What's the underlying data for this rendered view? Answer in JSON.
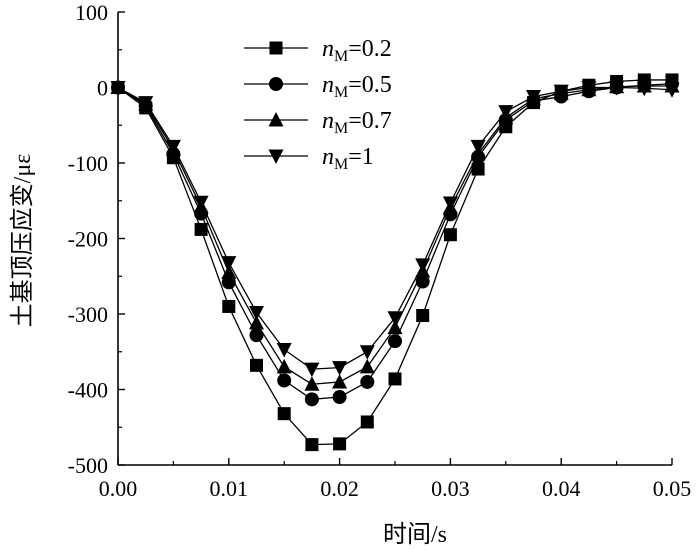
{
  "chart_data": {
    "type": "line",
    "title": "",
    "xlabel": "时间/s",
    "ylabel": "土基顶压应变/με",
    "xlim": [
      0,
      0.05
    ],
    "ylim": [
      -500,
      100
    ],
    "xticks": [
      0,
      0.01,
      0.02,
      0.03,
      0.04,
      0.05
    ],
    "xtick_labels": [
      "0.00",
      "0.01",
      "0.02",
      "0.03",
      "0.04",
      "0.05"
    ],
    "yticks": [
      -500,
      -400,
      -300,
      -200,
      -100,
      0,
      100
    ],
    "ytick_labels": [
      "-500",
      "-400",
      "-300",
      "-200",
      "-100",
      "0",
      "100"
    ],
    "grid": false,
    "legend_position": "top-center",
    "x": [
      0,
      0.0025,
      0.005,
      0.0075,
      0.01,
      0.0125,
      0.015,
      0.0175,
      0.02,
      0.0225,
      0.025,
      0.0275,
      0.03,
      0.0325,
      0.035,
      0.0375,
      0.04,
      0.0425,
      0.045,
      0.0475,
      0.05
    ],
    "series": [
      {
        "name": "nM=0.2",
        "legend": {
          "var": "n",
          "sub": "M",
          "rest": "=0.2"
        },
        "marker": "square",
        "values": [
          0,
          -27,
          -93,
          -188,
          -290,
          -368,
          -432,
          -473,
          -472,
          -443,
          -386,
          -302,
          -195,
          -108,
          -52,
          -20,
          -5,
          3,
          8,
          10,
          10
        ]
      },
      {
        "name": "nM=0.5",
        "legend": {
          "var": "n",
          "sub": "M",
          "rest": "=0.5"
        },
        "marker": "circle",
        "values": [
          0,
          -24,
          -88,
          -167,
          -258,
          -328,
          -388,
          -413,
          -410,
          -390,
          -336,
          -257,
          -168,
          -92,
          -43,
          -18,
          -12,
          -5,
          0,
          3,
          5
        ]
      },
      {
        "name": "nM=0.7",
        "legend": {
          "var": "n",
          "sub": "M",
          "rest": "=0.7"
        },
        "marker": "triangle-up",
        "values": [
          0,
          -22,
          -82,
          -158,
          -245,
          -312,
          -370,
          -393,
          -390,
          -370,
          -318,
          -243,
          -159,
          -88,
          -40,
          -15,
          -8,
          -3,
          1,
          2,
          2
        ]
      },
      {
        "name": "nM=1",
        "legend": {
          "var": "n",
          "sub": "M",
          "rest": "=1"
        },
        "marker": "triangle-down",
        "values": [
          0,
          -20,
          -78,
          -152,
          -232,
          -298,
          -347,
          -373,
          -371,
          -350,
          -305,
          -235,
          -153,
          -78,
          -32,
          -12,
          -5,
          0,
          0,
          -1,
          -3
        ]
      }
    ]
  }
}
